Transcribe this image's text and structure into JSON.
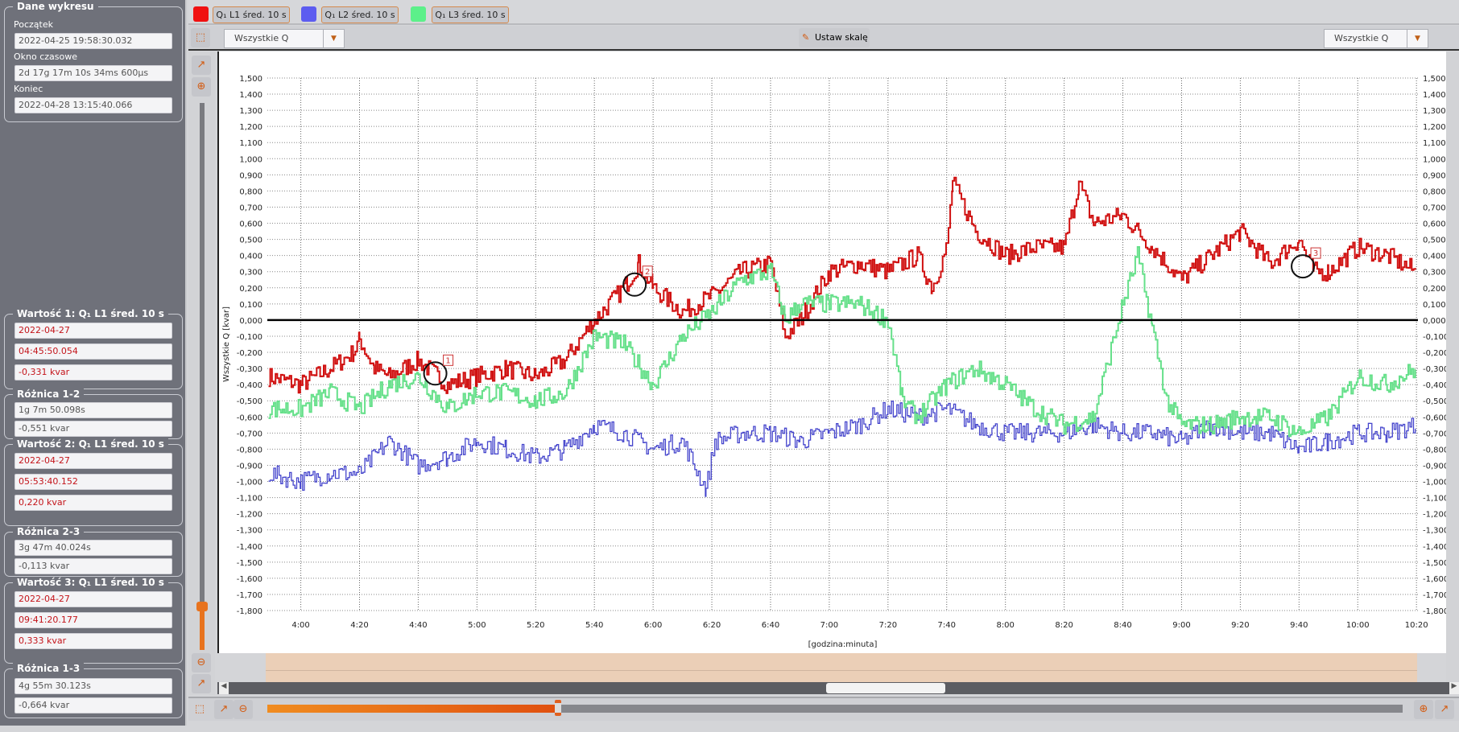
{
  "left_panel": {
    "chart_data_group": {
      "title": "Dane wykresu",
      "start_label": "Początek",
      "start_value": "2022-04-25 19:58:30.032",
      "window_label": "Okno czasowe",
      "window_value": "2d 17g 17m 10s 34ms 600µs",
      "end_label": "Koniec",
      "end_value": "2022-04-28 13:15:40.066"
    },
    "value1": {
      "title": "Wartość 1: Q₁ L1 śred. 10 s",
      "date": "2022-04-27",
      "time": "04:45:50.054",
      "value": "-0,331 kvar"
    },
    "diff12": {
      "title": "Różnica 1-2",
      "time": "1g 7m 50.098s",
      "value": "-0,551 kvar"
    },
    "value2": {
      "title": "Wartość 2: Q₁ L1 śred. 10 s",
      "date": "2022-04-27",
      "time": "05:53:40.152",
      "value": "0,220 kvar"
    },
    "diff23": {
      "title": "Różnica 2-3",
      "time": "3g 47m 40.024s",
      "value": "-0,113 kvar"
    },
    "value3": {
      "title": "Wartość 3: Q₁ L1 śred. 10 s",
      "date": "2022-04-27",
      "time": "09:41:20.177",
      "value": "0,333 kvar"
    },
    "diff13": {
      "title": "Różnica 1-3",
      "time": "4g 55m 30.123s",
      "value": "-0,664 kvar"
    }
  },
  "legend": [
    {
      "label": "Q₁ L1 śred. 10 s",
      "color": "#f01010"
    },
    {
      "label": "Q₁ L2 śred. 10 s",
      "color": "#5c5cf0"
    },
    {
      "label": "Q₁ L3 śred. 10 s",
      "color": "#5cf08a"
    }
  ],
  "toolbar": {
    "left_select": "Wszystkie Q",
    "scale_button": "Ustaw skalę",
    "right_select": "Wszystkie Q"
  },
  "chart_data": {
    "type": "line",
    "xlabel": "[godzina:minuta]",
    "ylabel": "Wszystkie Q [kvar]",
    "ylabel_right": "Wszystkie Q [kvar]",
    "ylim": [
      -1.8,
      1.5
    ],
    "yticks": [
      "1,500",
      "1,400",
      "1,300",
      "1,200",
      "1,100",
      "1,000",
      "0,900",
      "0,800",
      "0,700",
      "0,600",
      "0,500",
      "0,400",
      "0,300",
      "0,200",
      "0,100",
      "0,000",
      "-0,100",
      "-0,200",
      "-0,300",
      "-0,400",
      "-0,500",
      "-0,600",
      "-0,700",
      "-0,800",
      "-0,900",
      "-1,000",
      "-1,100",
      "-1,200",
      "-1,300",
      "-1,400",
      "-1,500",
      "-1,600",
      "-1,700",
      "-1,800"
    ],
    "xticks": [
      "4:00",
      "4:20",
      "4:40",
      "5:00",
      "5:20",
      "5:40",
      "6:00",
      "6:20",
      "6:40",
      "7:00",
      "7:20",
      "7:40",
      "8:00",
      "8:20",
      "8:40",
      "9:00",
      "9:20",
      "9:40",
      "10:00",
      "10:20"
    ],
    "x_minutes_range": [
      228.6,
      620.5
    ],
    "grid": true,
    "series": [
      {
        "name": "Q₁ L1 śred. 10 s",
        "color": "#d01010",
        "points": [
          [
            229,
            -0.35
          ],
          [
            240,
            -0.4
          ],
          [
            250,
            -0.3
          ],
          [
            258,
            -0.2
          ],
          [
            260,
            -0.12
          ],
          [
            265,
            -0.3
          ],
          [
            270,
            -0.35
          ],
          [
            280,
            -0.25
          ],
          [
            290,
            -0.4
          ],
          [
            300,
            -0.35
          ],
          [
            310,
            -0.3
          ],
          [
            320,
            -0.35
          ],
          [
            330,
            -0.25
          ],
          [
            340,
            0.0
          ],
          [
            350,
            0.2
          ],
          [
            355,
            0.35
          ],
          [
            360,
            0.2
          ],
          [
            370,
            0.05
          ],
          [
            380,
            0.15
          ],
          [
            390,
            0.3
          ],
          [
            400,
            0.35
          ],
          [
            405,
            -0.1
          ],
          [
            410,
            0.0
          ],
          [
            420,
            0.3
          ],
          [
            430,
            0.35
          ],
          [
            440,
            0.3
          ],
          [
            450,
            0.4
          ],
          [
            455,
            0.2
          ],
          [
            460,
            0.45
          ],
          [
            462,
            0.85
          ],
          [
            470,
            0.55
          ],
          [
            480,
            0.4
          ],
          [
            490,
            0.45
          ],
          [
            500,
            0.45
          ],
          [
            505,
            0.85
          ],
          [
            510,
            0.6
          ],
          [
            520,
            0.65
          ],
          [
            530,
            0.45
          ],
          [
            540,
            0.25
          ],
          [
            550,
            0.4
          ],
          [
            560,
            0.55
          ],
          [
            570,
            0.35
          ],
          [
            580,
            0.5
          ],
          [
            585,
            0.3
          ],
          [
            590,
            0.3
          ],
          [
            600,
            0.45
          ],
          [
            610,
            0.4
          ],
          [
            620,
            0.3
          ]
        ]
      },
      {
        "name": "Q₁ L2 śred. 10 s",
        "color": "#4444cc",
        "points": [
          [
            229,
            -0.95
          ],
          [
            240,
            -1.0
          ],
          [
            250,
            -0.95
          ],
          [
            260,
            -0.95
          ],
          [
            270,
            -0.75
          ],
          [
            280,
            -0.9
          ],
          [
            290,
            -0.85
          ],
          [
            300,
            -0.75
          ],
          [
            310,
            -0.8
          ],
          [
            320,
            -0.85
          ],
          [
            330,
            -0.8
          ],
          [
            340,
            -0.65
          ],
          [
            350,
            -0.7
          ],
          [
            360,
            -0.8
          ],
          [
            370,
            -0.75
          ],
          [
            378,
            -1.05
          ],
          [
            381,
            -0.75
          ],
          [
            390,
            -0.7
          ],
          [
            400,
            -0.7
          ],
          [
            410,
            -0.75
          ],
          [
            420,
            -0.7
          ],
          [
            430,
            -0.65
          ],
          [
            440,
            -0.55
          ],
          [
            450,
            -0.6
          ],
          [
            460,
            -0.55
          ],
          [
            470,
            -0.65
          ],
          [
            480,
            -0.7
          ],
          [
            490,
            -0.7
          ],
          [
            500,
            -0.7
          ],
          [
            510,
            -0.65
          ],
          [
            520,
            -0.7
          ],
          [
            530,
            -0.7
          ],
          [
            540,
            -0.75
          ],
          [
            550,
            -0.65
          ],
          [
            560,
            -0.7
          ],
          [
            570,
            -0.7
          ],
          [
            580,
            -0.8
          ],
          [
            590,
            -0.75
          ],
          [
            600,
            -0.7
          ],
          [
            610,
            -0.7
          ],
          [
            620,
            -0.65
          ]
        ]
      },
      {
        "name": "Q₁ L3 śred. 10 s",
        "color": "#66e08a",
        "points": [
          [
            229,
            -0.55
          ],
          [
            240,
            -0.55
          ],
          [
            250,
            -0.45
          ],
          [
            260,
            -0.55
          ],
          [
            270,
            -0.4
          ],
          [
            280,
            -0.35
          ],
          [
            290,
            -0.55
          ],
          [
            300,
            -0.45
          ],
          [
            310,
            -0.45
          ],
          [
            320,
            -0.5
          ],
          [
            330,
            -0.45
          ],
          [
            340,
            -0.1
          ],
          [
            350,
            -0.15
          ],
          [
            360,
            -0.4
          ],
          [
            370,
            -0.1
          ],
          [
            380,
            0.05
          ],
          [
            390,
            0.25
          ],
          [
            400,
            0.3
          ],
          [
            405,
            0.0
          ],
          [
            410,
            0.1
          ],
          [
            420,
            0.1
          ],
          [
            430,
            0.1
          ],
          [
            440,
            0.0
          ],
          [
            445,
            -0.5
          ],
          [
            450,
            -0.6
          ],
          [
            460,
            -0.4
          ],
          [
            470,
            -0.3
          ],
          [
            480,
            -0.4
          ],
          [
            490,
            -0.55
          ],
          [
            500,
            -0.65
          ],
          [
            510,
            -0.6
          ],
          [
            520,
            0.1
          ],
          [
            525,
            0.4
          ],
          [
            530,
            -0.05
          ],
          [
            535,
            -0.5
          ],
          [
            540,
            -0.65
          ],
          [
            550,
            -0.65
          ],
          [
            560,
            -0.6
          ],
          [
            570,
            -0.6
          ],
          [
            580,
            -0.7
          ],
          [
            590,
            -0.6
          ],
          [
            600,
            -0.35
          ],
          [
            610,
            -0.4
          ],
          [
            620,
            -0.3
          ]
        ]
      }
    ],
    "markers": [
      {
        "label": "1",
        "x": 285.8,
        "y": -0.331
      },
      {
        "label": "2",
        "x": 353.7,
        "y": 0.22
      },
      {
        "label": "3",
        "x": 581.3,
        "y": 0.333
      }
    ]
  }
}
